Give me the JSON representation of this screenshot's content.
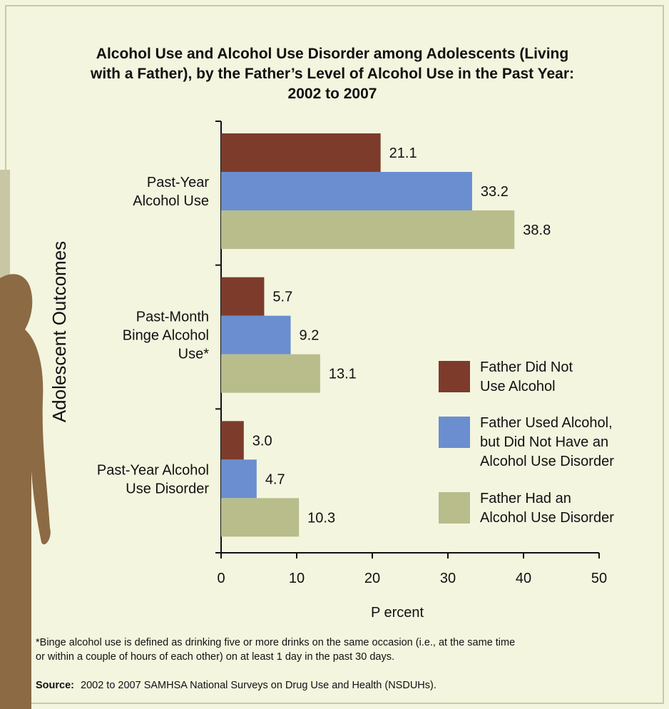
{
  "chart_data": {
    "type": "hbar",
    "title": "Alcohol Use and Alcohol Use Disorder among Adolescents (Living\nwith a Father), by the Father’s Level of Alcohol Use in the Past Year:\n2002 to 2007",
    "categories": [
      "Past-Year\nAlcohol Use",
      "Past-Month\nBinge Alcohol\nUse*",
      "Past-Year Alcohol\nUse Disorder"
    ],
    "series": [
      {
        "name": "Father Did Not\nUse Alcohol",
        "color": "#7d3b2b",
        "values": [
          21.1,
          5.7,
          3.0
        ],
        "value_labels": [
          "21.1",
          "5.7",
          "3.0"
        ]
      },
      {
        "name": "Father Used Alcohol,\nbut Did Not Have an\nAlcohol Use Disorder",
        "color": "#6a8ed0",
        "values": [
          33.2,
          9.2,
          4.7
        ],
        "value_labels": [
          "33.2",
          "9.2",
          "4.7"
        ]
      },
      {
        "name": "Father Had an\nAlcohol Use Disorder",
        "color": "#b8bd8b",
        "values": [
          38.8,
          13.1,
          10.3
        ],
        "value_labels": [
          "38.8",
          "13.1",
          "10.3"
        ]
      }
    ],
    "xlim": [
      0,
      50
    ],
    "xticks": [
      0,
      10,
      20,
      30,
      40,
      50
    ],
    "xlabel": "P ercent",
    "ylabel": "Adolescent Outcomes",
    "footnote": "*Binge alcohol use is defined as drinking five or more drinks on the same occasion (i.e., at the same time\nor within a couple of hours of each other) on at least 1 day in the past 30 days.",
    "source_label": "Source:",
    "source": "2002 to 2007 SAMHSA National Surveys on Drug Use and Health (NSDUHs)."
  }
}
